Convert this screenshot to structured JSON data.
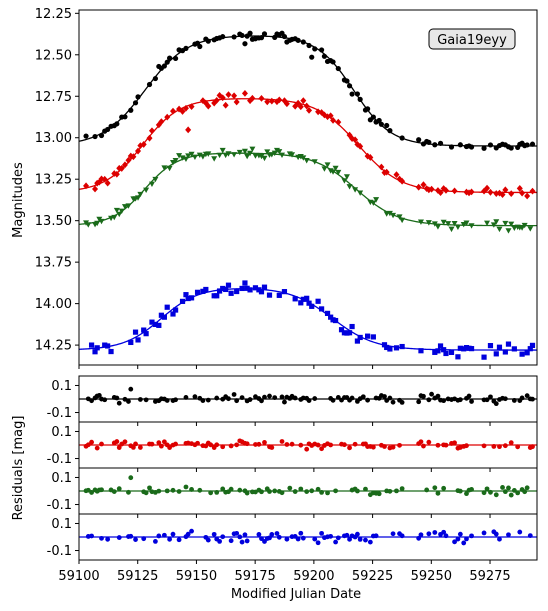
{
  "chart_data": {
    "type": "scatter",
    "legend_label": "Gaia19eyy",
    "legend_position": "top-right",
    "xlabel": "Modified Julian Date",
    "ylabel_main": "Magnitudes",
    "ylabel_residuals": "Residuals [mag]",
    "xlim": [
      59100,
      59295
    ],
    "x_ticks": [
      59100,
      59125,
      59150,
      59175,
      59200,
      59225,
      59250,
      59275
    ],
    "main_ylim": [
      12.23,
      14.37
    ],
    "main_y_inverted": true,
    "main_y_ticks": [
      12.25,
      12.5,
      12.75,
      13.0,
      13.25,
      13.5,
      13.75,
      14.0,
      14.25
    ],
    "residual_ylim": [
      -0.17,
      0.17
    ],
    "residual_y_ticks": [
      0.1,
      -0.1
    ],
    "grid": false,
    "series": [
      {
        "color": "#000000",
        "marker": "circle",
        "base": 13.05,
        "peak": 12.38,
        "x_rise": 59128,
        "x_fall": 59217,
        "w_rise": 9,
        "w_fall": 8
      },
      {
        "color": "#dd0000",
        "marker": "diamond",
        "base": 13.33,
        "peak": 12.76,
        "x_rise": 59127,
        "x_fall": 59219,
        "w_rise": 8,
        "w_fall": 9
      },
      {
        "color": "#1a6b1a",
        "marker": "triangle-down",
        "base": 13.53,
        "peak": 13.09,
        "x_rise": 59128,
        "x_fall": 59218,
        "w_rise": 7,
        "w_fall": 9
      },
      {
        "color": "#0000dd",
        "marker": "square",
        "base": 14.28,
        "peak": 13.9,
        "x_rise": 59135,
        "x_fall": 59208,
        "w_rise": 8,
        "w_fall": 9
      }
    ]
  }
}
